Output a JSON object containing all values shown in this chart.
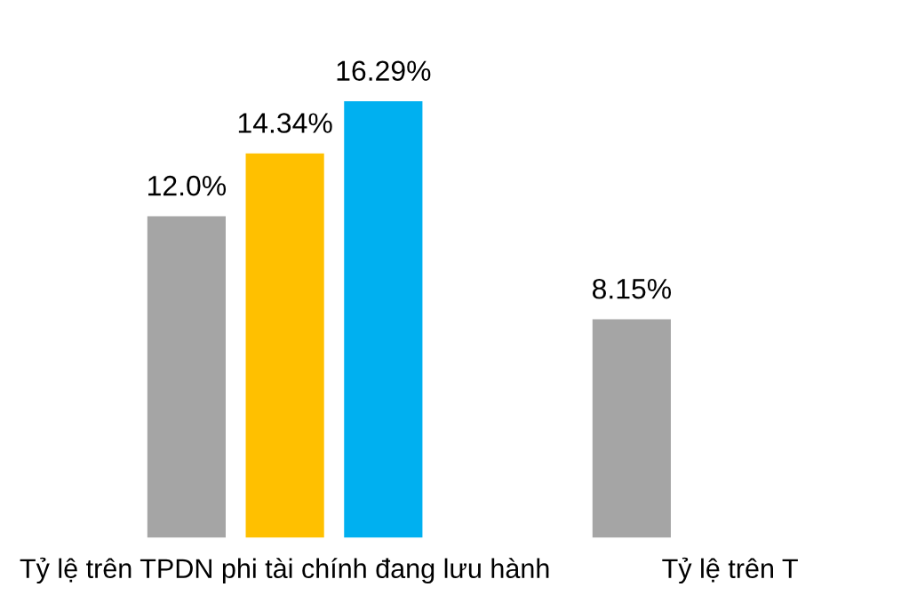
{
  "chart_data": {
    "type": "bar",
    "categories": [
      "Tỷ lệ trên TPDN phi tài chính đang lưu hành",
      "Tỷ lệ trên T"
    ],
    "series": [
      {
        "color": "#a5a5a5",
        "values": [
          12.0,
          8.15
        ],
        "value_labels": [
          "12.0%",
          "8.15%"
        ]
      },
      {
        "color": "#ffc000",
        "values": [
          14.34,
          null
        ],
        "value_labels": [
          "14.34%",
          null
        ]
      },
      {
        "color": "#00b0f0",
        "values": [
          16.29,
          null
        ],
        "value_labels": [
          "16.29%",
          null
        ]
      }
    ],
    "grid": false,
    "legend": false
  }
}
